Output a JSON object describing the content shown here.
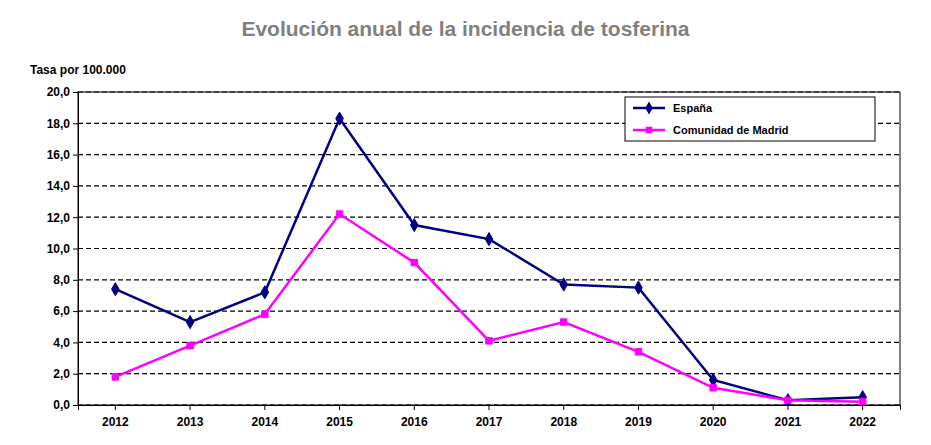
{
  "chart_data": {
    "type": "line",
    "title": "Evolución anual de la incidencia de tosferina",
    "ylabel": "Tasa por 100.000",
    "categories": [
      "2012",
      "2013",
      "2014",
      "2015",
      "2016",
      "2017",
      "2018",
      "2019",
      "2020",
      "2021",
      "2022"
    ],
    "series": [
      {
        "name": "España",
        "color": "#000080",
        "marker": "diamond",
        "line_style": "solid",
        "values": [
          7.4,
          5.3,
          7.2,
          18.3,
          11.5,
          10.6,
          7.7,
          7.5,
          1.6,
          0.3,
          0.5
        ]
      },
      {
        "name": "Comunidad de Madrid",
        "color": "#ff00ff",
        "marker": "square",
        "line_style": "solid",
        "values": [
          1.8,
          3.8,
          5.8,
          12.2,
          9.1,
          4.1,
          5.3,
          3.4,
          1.1,
          0.3,
          0.2
        ]
      }
    ],
    "ylim": [
      0,
      20
    ],
    "yticks": [
      {
        "value": 0,
        "label": "0,0"
      },
      {
        "value": 2,
        "label": "2,0"
      },
      {
        "value": 4,
        "label": "4,0"
      },
      {
        "value": 6,
        "label": "6,0"
      },
      {
        "value": 8,
        "label": "8,0"
      },
      {
        "value": 10,
        "label": "10,0"
      },
      {
        "value": 12,
        "label": "12,0"
      },
      {
        "value": 14,
        "label": "14,0"
      },
      {
        "value": 16,
        "label": "16,0"
      },
      {
        "value": 18,
        "label": "18,0"
      },
      {
        "value": 20,
        "label": "20,0"
      }
    ],
    "grid": true,
    "legend": "upper right"
  }
}
